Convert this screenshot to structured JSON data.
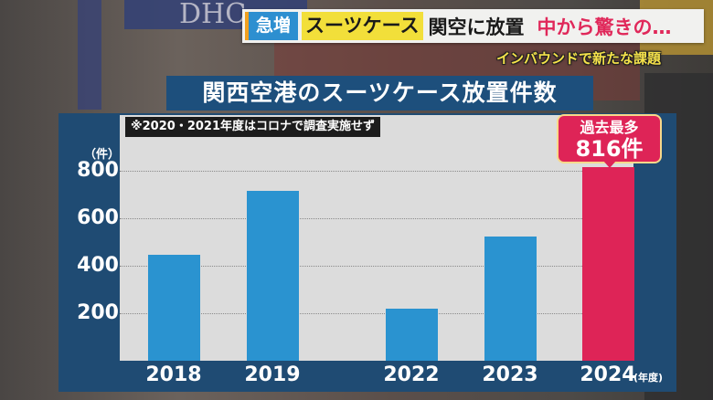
{
  "headline": {
    "tag": "急増",
    "highlight": "スーツケース",
    "main": "関空に放置",
    "red": "中から驚きの…",
    "subhead": "インバウンドで新たな課題"
  },
  "background": {
    "sign_text": "DHC"
  },
  "chart": {
    "title": "関西空港のスーツケース放置件数",
    "note": "※2020・2021年度はコロナで調査実施せず",
    "y_unit": "（件）",
    "x_unit": "(年度)",
    "y_ticks": [
      "800",
      "600",
      "400",
      "200"
    ],
    "x_labels": [
      "2018",
      "2019",
      "2022",
      "2023",
      "2024"
    ],
    "callout_line1": "過去最多",
    "callout_line2": "816件",
    "colors": {
      "bar": "#2a93d0",
      "highlight": "#de2457",
      "panel": "#1f4b73",
      "plot_bg": "#dcdcdc"
    }
  },
  "chart_data": {
    "type": "bar",
    "title": "関西空港のスーツケース放置件数",
    "categories": [
      "2018",
      "2019",
      "2022",
      "2023",
      "2024"
    ],
    "values": [
      446,
      715,
      219,
      523,
      816
    ],
    "xlabel": "年度",
    "ylabel": "件",
    "ylim": [
      0,
      900
    ],
    "yticks": [
      200,
      400,
      600,
      800
    ],
    "grid": true,
    "annotations": [
      {
        "category": "2024",
        "text": "過去最多 816件"
      },
      {
        "text": "※2020・2021年度はコロナで調査実施せず"
      }
    ],
    "highlight_category": "2024"
  }
}
